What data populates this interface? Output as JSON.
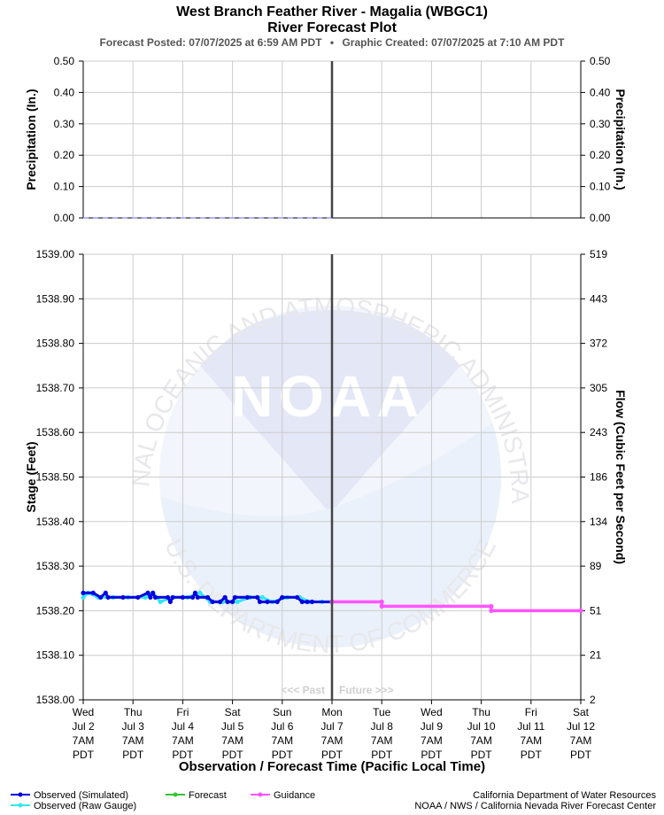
{
  "header": {
    "title": "West Branch Feather River - Magalia (WBGC1)",
    "subtitle": "River Forecast Plot",
    "posted_label": "Forecast Posted: 07/07/2025 at 6:59 AM PDT",
    "bullet": "•",
    "created_label": "Graphic Created: 07/07/2025 at 7:10 AM PDT"
  },
  "watermark": {
    "logo_text": "NOAA",
    "arc_top": "NATIONAL OCEANIC AND ATMOSPHERIC ADMINISTRATION",
    "arc_bottom": "U.S. DEPARTMENT OF COMMERCE"
  },
  "colors": {
    "observed_simulated": "#0000e0",
    "observed_raw": "#33e6f0",
    "forecast": "#33c433",
    "guidance": "#ff55ff",
    "grid": "#cccccc",
    "now_line": "#444444",
    "precip_dash": "#9999ff"
  },
  "chart_data": [
    {
      "type": "line",
      "name": "precipitation",
      "ylabel": "Precipitation (In.)",
      "ylabel_right": "Precipitation (In.)",
      "ylim": [
        0,
        0.5
      ],
      "yticks": [
        "0.00",
        "0.10",
        "0.20",
        "0.30",
        "0.40",
        "0.50"
      ],
      "yticks_right": [
        "0.00",
        "0.10",
        "0.20",
        "0.30",
        "0.40",
        "0.50"
      ],
      "grid": true,
      "series": [
        {
          "values": [
            [
              0,
              0.0
            ],
            [
              5,
              0.0
            ]
          ]
        }
      ]
    },
    {
      "type": "line",
      "name": "stage",
      "ylabel": "Stage (Feet)",
      "ylabel_right": "Flow (Cubic Feet per Second)",
      "xlabel": "Observation / Forecast Time (Pacific Local Time)",
      "ylim": [
        1538.0,
        1539.0
      ],
      "yticks": [
        "1538.00",
        "1538.10",
        "1538.20",
        "1538.30",
        "1538.40",
        "1538.50",
        "1538.60",
        "1538.70",
        "1538.80",
        "1538.90",
        "1539.00"
      ],
      "yticks_right": [
        "2",
        "21",
        "51",
        "89",
        "134",
        "186",
        "243",
        "305",
        "372",
        "443",
        "519"
      ],
      "grid": true,
      "xlim": [
        0,
        10
      ],
      "now_x": 5,
      "past_label": "<<< Past",
      "future_label": "Future >>>",
      "x_ticks": [
        {
          "day": "Wed",
          "date": "Jul 2",
          "time": "7AM",
          "tz": "PDT"
        },
        {
          "day": "Thu",
          "date": "Jul 3",
          "time": "7AM",
          "tz": "PDT"
        },
        {
          "day": "Fri",
          "date": "Jul 4",
          "time": "7AM",
          "tz": "PDT"
        },
        {
          "day": "Sat",
          "date": "Jul 5",
          "time": "7AM",
          "tz": "PDT"
        },
        {
          "day": "Sun",
          "date": "Jul 6",
          "time": "7AM",
          "tz": "PDT"
        },
        {
          "day": "Mon",
          "date": "Jul 7",
          "time": "7AM",
          "tz": "PDT"
        },
        {
          "day": "Tue",
          "date": "Jul 8",
          "time": "7AM",
          "tz": "PDT"
        },
        {
          "day": "Wed",
          "date": "Jul 9",
          "time": "7AM",
          "tz": "PDT"
        },
        {
          "day": "Thu",
          "date": "Jul 10",
          "time": "7AM",
          "tz": "PDT"
        },
        {
          "day": "Fri",
          "date": "Jul 11",
          "time": "7AM",
          "tz": "PDT"
        },
        {
          "day": "Sat",
          "date": "Jul 12",
          "time": "7AM",
          "tz": "PDT"
        }
      ],
      "series": [
        {
          "name": "Observed (Raw Gauge)",
          "values": [
            [
              0,
              1538.23
            ],
            [
              0.1,
              1538.24
            ],
            [
              0.3,
              1538.23
            ],
            [
              0.6,
              1538.23
            ],
            [
              0.9,
              1538.23
            ],
            [
              1.25,
              1538.23
            ],
            [
              1.4,
              1538.24
            ],
            [
              1.55,
              1538.22
            ],
            [
              1.8,
              1538.23
            ],
            [
              2.1,
              1538.23
            ],
            [
              2.35,
              1538.24
            ],
            [
              2.55,
              1538.22
            ],
            [
              2.8,
              1538.22
            ],
            [
              3.1,
              1538.22
            ],
            [
              3.35,
              1538.23
            ],
            [
              3.6,
              1538.23
            ],
            [
              3.8,
              1538.22
            ],
            [
              4.1,
              1538.23
            ],
            [
              4.35,
              1538.23
            ],
            [
              4.55,
              1538.22
            ],
            [
              4.8,
              1538.22
            ],
            [
              5.0,
              1538.22
            ]
          ]
        },
        {
          "name": "Observed (Simulated)",
          "values": [
            [
              0,
              1538.24
            ],
            [
              0.2,
              1538.24
            ],
            [
              0.35,
              1538.23
            ],
            [
              0.45,
              1538.24
            ],
            [
              0.5,
              1538.23
            ],
            [
              0.8,
              1538.23
            ],
            [
              1.1,
              1538.23
            ],
            [
              1.3,
              1538.24
            ],
            [
              1.35,
              1538.23
            ],
            [
              1.4,
              1538.24
            ],
            [
              1.45,
              1538.23
            ],
            [
              1.7,
              1538.23
            ],
            [
              1.75,
              1538.22
            ],
            [
              1.8,
              1538.23
            ],
            [
              2.0,
              1538.23
            ],
            [
              2.2,
              1538.23
            ],
            [
              2.25,
              1538.24
            ],
            [
              2.3,
              1538.23
            ],
            [
              2.5,
              1538.23
            ],
            [
              2.6,
              1538.22
            ],
            [
              2.75,
              1538.22
            ],
            [
              2.85,
              1538.23
            ],
            [
              2.9,
              1538.22
            ],
            [
              3.0,
              1538.22
            ],
            [
              3.05,
              1538.23
            ],
            [
              3.3,
              1538.23
            ],
            [
              3.5,
              1538.23
            ],
            [
              3.55,
              1538.22
            ],
            [
              3.7,
              1538.22
            ],
            [
              3.9,
              1538.22
            ],
            [
              4.0,
              1538.23
            ],
            [
              4.3,
              1538.23
            ],
            [
              4.4,
              1538.22
            ],
            [
              4.5,
              1538.22
            ],
            [
              4.6,
              1538.22
            ],
            [
              5.0,
              1538.22
            ]
          ]
        },
        {
          "name": "Guidance",
          "values": [
            [
              5.0,
              1538.22
            ],
            [
              6.0,
              1538.22
            ],
            [
              6.0,
              1538.21
            ],
            [
              8.2,
              1538.21
            ],
            [
              8.2,
              1538.2
            ],
            [
              10.0,
              1538.2
            ]
          ]
        },
        {
          "name": "Forecast",
          "values": []
        }
      ]
    }
  ],
  "legend": {
    "observed_simulated": "Observed (Simulated)",
    "observed_raw": "Observed (Raw Gauge)",
    "forecast": "Forecast",
    "guidance": "Guidance"
  },
  "footer": {
    "line1": "California Department of Water Resources",
    "line2": "NOAA / NWS / California Nevada River Forecast Center"
  }
}
